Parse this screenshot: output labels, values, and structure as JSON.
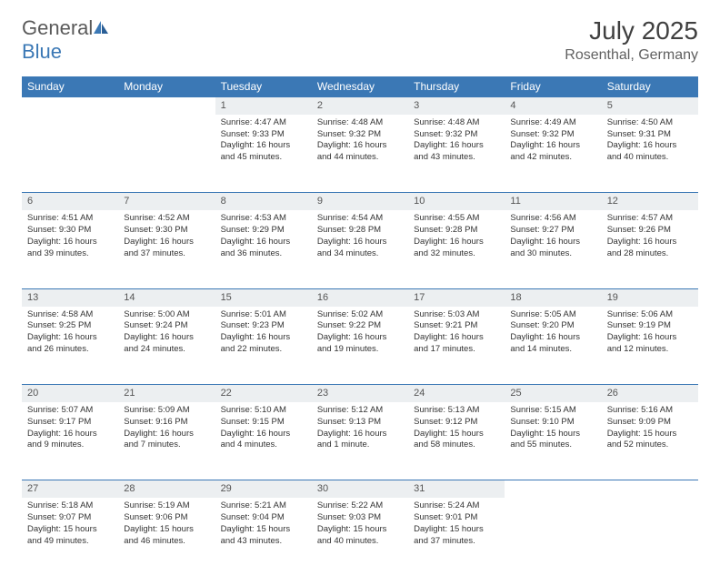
{
  "logo": {
    "text1": "General",
    "text2": "Blue"
  },
  "header": {
    "month": "July 2025",
    "location": "Rosenthal, Germany"
  },
  "colors": {
    "header_bg": "#3b78b5",
    "header_text": "#ffffff",
    "daynum_bg": "#eceff1",
    "row_border": "#3b78b5",
    "page_bg": "#ffffff",
    "body_text": "#333333"
  },
  "dayNames": [
    "Sunday",
    "Monday",
    "Tuesday",
    "Wednesday",
    "Thursday",
    "Friday",
    "Saturday"
  ],
  "weeks": [
    [
      null,
      null,
      {
        "n": "1",
        "sunrise": "Sunrise: 4:47 AM",
        "sunset": "Sunset: 9:33 PM",
        "day": "Daylight: 16 hours and 45 minutes."
      },
      {
        "n": "2",
        "sunrise": "Sunrise: 4:48 AM",
        "sunset": "Sunset: 9:32 PM",
        "day": "Daylight: 16 hours and 44 minutes."
      },
      {
        "n": "3",
        "sunrise": "Sunrise: 4:48 AM",
        "sunset": "Sunset: 9:32 PM",
        "day": "Daylight: 16 hours and 43 minutes."
      },
      {
        "n": "4",
        "sunrise": "Sunrise: 4:49 AM",
        "sunset": "Sunset: 9:32 PM",
        "day": "Daylight: 16 hours and 42 minutes."
      },
      {
        "n": "5",
        "sunrise": "Sunrise: 4:50 AM",
        "sunset": "Sunset: 9:31 PM",
        "day": "Daylight: 16 hours and 40 minutes."
      }
    ],
    [
      {
        "n": "6",
        "sunrise": "Sunrise: 4:51 AM",
        "sunset": "Sunset: 9:30 PM",
        "day": "Daylight: 16 hours and 39 minutes."
      },
      {
        "n": "7",
        "sunrise": "Sunrise: 4:52 AM",
        "sunset": "Sunset: 9:30 PM",
        "day": "Daylight: 16 hours and 37 minutes."
      },
      {
        "n": "8",
        "sunrise": "Sunrise: 4:53 AM",
        "sunset": "Sunset: 9:29 PM",
        "day": "Daylight: 16 hours and 36 minutes."
      },
      {
        "n": "9",
        "sunrise": "Sunrise: 4:54 AM",
        "sunset": "Sunset: 9:28 PM",
        "day": "Daylight: 16 hours and 34 minutes."
      },
      {
        "n": "10",
        "sunrise": "Sunrise: 4:55 AM",
        "sunset": "Sunset: 9:28 PM",
        "day": "Daylight: 16 hours and 32 minutes."
      },
      {
        "n": "11",
        "sunrise": "Sunrise: 4:56 AM",
        "sunset": "Sunset: 9:27 PM",
        "day": "Daylight: 16 hours and 30 minutes."
      },
      {
        "n": "12",
        "sunrise": "Sunrise: 4:57 AM",
        "sunset": "Sunset: 9:26 PM",
        "day": "Daylight: 16 hours and 28 minutes."
      }
    ],
    [
      {
        "n": "13",
        "sunrise": "Sunrise: 4:58 AM",
        "sunset": "Sunset: 9:25 PM",
        "day": "Daylight: 16 hours and 26 minutes."
      },
      {
        "n": "14",
        "sunrise": "Sunrise: 5:00 AM",
        "sunset": "Sunset: 9:24 PM",
        "day": "Daylight: 16 hours and 24 minutes."
      },
      {
        "n": "15",
        "sunrise": "Sunrise: 5:01 AM",
        "sunset": "Sunset: 9:23 PM",
        "day": "Daylight: 16 hours and 22 minutes."
      },
      {
        "n": "16",
        "sunrise": "Sunrise: 5:02 AM",
        "sunset": "Sunset: 9:22 PM",
        "day": "Daylight: 16 hours and 19 minutes."
      },
      {
        "n": "17",
        "sunrise": "Sunrise: 5:03 AM",
        "sunset": "Sunset: 9:21 PM",
        "day": "Daylight: 16 hours and 17 minutes."
      },
      {
        "n": "18",
        "sunrise": "Sunrise: 5:05 AM",
        "sunset": "Sunset: 9:20 PM",
        "day": "Daylight: 16 hours and 14 minutes."
      },
      {
        "n": "19",
        "sunrise": "Sunrise: 5:06 AM",
        "sunset": "Sunset: 9:19 PM",
        "day": "Daylight: 16 hours and 12 minutes."
      }
    ],
    [
      {
        "n": "20",
        "sunrise": "Sunrise: 5:07 AM",
        "sunset": "Sunset: 9:17 PM",
        "day": "Daylight: 16 hours and 9 minutes."
      },
      {
        "n": "21",
        "sunrise": "Sunrise: 5:09 AM",
        "sunset": "Sunset: 9:16 PM",
        "day": "Daylight: 16 hours and 7 minutes."
      },
      {
        "n": "22",
        "sunrise": "Sunrise: 5:10 AM",
        "sunset": "Sunset: 9:15 PM",
        "day": "Daylight: 16 hours and 4 minutes."
      },
      {
        "n": "23",
        "sunrise": "Sunrise: 5:12 AM",
        "sunset": "Sunset: 9:13 PM",
        "day": "Daylight: 16 hours and 1 minute."
      },
      {
        "n": "24",
        "sunrise": "Sunrise: 5:13 AM",
        "sunset": "Sunset: 9:12 PM",
        "day": "Daylight: 15 hours and 58 minutes."
      },
      {
        "n": "25",
        "sunrise": "Sunrise: 5:15 AM",
        "sunset": "Sunset: 9:10 PM",
        "day": "Daylight: 15 hours and 55 minutes."
      },
      {
        "n": "26",
        "sunrise": "Sunrise: 5:16 AM",
        "sunset": "Sunset: 9:09 PM",
        "day": "Daylight: 15 hours and 52 minutes."
      }
    ],
    [
      {
        "n": "27",
        "sunrise": "Sunrise: 5:18 AM",
        "sunset": "Sunset: 9:07 PM",
        "day": "Daylight: 15 hours and 49 minutes."
      },
      {
        "n": "28",
        "sunrise": "Sunrise: 5:19 AM",
        "sunset": "Sunset: 9:06 PM",
        "day": "Daylight: 15 hours and 46 minutes."
      },
      {
        "n": "29",
        "sunrise": "Sunrise: 5:21 AM",
        "sunset": "Sunset: 9:04 PM",
        "day": "Daylight: 15 hours and 43 minutes."
      },
      {
        "n": "30",
        "sunrise": "Sunrise: 5:22 AM",
        "sunset": "Sunset: 9:03 PM",
        "day": "Daylight: 15 hours and 40 minutes."
      },
      {
        "n": "31",
        "sunrise": "Sunrise: 5:24 AM",
        "sunset": "Sunset: 9:01 PM",
        "day": "Daylight: 15 hours and 37 minutes."
      },
      null,
      null
    ]
  ]
}
